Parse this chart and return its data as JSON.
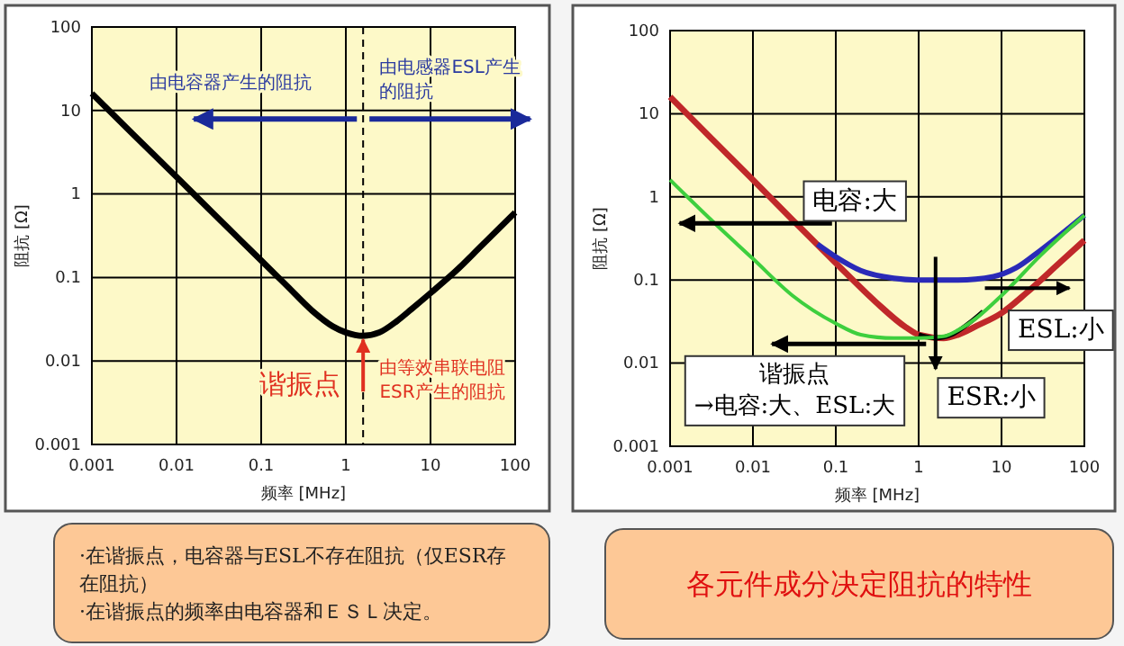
{
  "chart_data": [
    {
      "type": "line",
      "xlabel": "频率 [MHz]",
      "ylabel": "阻抗 [Ω]",
      "log": "xy",
      "grid": true,
      "xlim": [
        0.001,
        100
      ],
      "ylim": [
        0.001,
        100
      ],
      "xticks": [
        0.001,
        0.01,
        0.1,
        1,
        10,
        100
      ],
      "yticks": [
        0.001,
        0.01,
        0.1,
        1,
        10,
        100
      ],
      "ref_lines": [
        {
          "axis": "x",
          "value": 1.6,
          "line_style": "dashed",
          "color": "#000000"
        }
      ],
      "series": [
        {
          "color": "#000000",
          "x": [
            0.001,
            0.003,
            0.01,
            0.03,
            0.1,
            0.2,
            0.4,
            0.7,
            1,
            1.6,
            2.5,
            4,
            6,
            10,
            20,
            40,
            100
          ],
          "values": [
            16,
            5.3,
            1.6,
            0.53,
            0.16,
            0.08,
            0.04,
            0.026,
            0.022,
            0.02,
            0.022,
            0.03,
            0.042,
            0.065,
            0.12,
            0.24,
            0.6
          ]
        }
      ],
      "annotations": [
        "由电容器产生的阻抗",
        "由电感器ESL产生的阻抗",
        "谐振点",
        "由等效串联电阻ESR产生的阻抗",
        "·在谐振点，电容器与ESL不存在阻抗（仅ESR存在阻抗）",
        "·在谐振点的频率由电容器和ＥＳＬ决定。"
      ]
    },
    {
      "type": "line",
      "xlabel": "频率 [MHz]",
      "ylabel": "阻抗 [Ω]",
      "log": "xy",
      "grid": true,
      "xlim": [
        0.001,
        100
      ],
      "ylim": [
        0.001,
        100
      ],
      "xticks": [
        0.001,
        0.01,
        0.1,
        1,
        10,
        100
      ],
      "yticks": [
        0.001,
        0.01,
        0.1,
        1,
        10,
        100
      ],
      "series": [
        {
          "color": "#c0282a",
          "x": [
            0.001,
            0.003,
            0.01,
            0.03,
            0.1,
            0.3,
            0.7,
            1,
            2,
            3,
            5,
            10,
            20,
            50,
            100
          ],
          "values": [
            16,
            5.3,
            1.6,
            0.53,
            0.16,
            0.055,
            0.027,
            0.022,
            0.02,
            0.022,
            0.028,
            0.04,
            0.07,
            0.16,
            0.3
          ]
        },
        {
          "color": "#2a2ab8",
          "x": [
            0.06,
            0.1,
            0.2,
            0.5,
            1,
            3,
            8,
            15,
            30,
            100
          ],
          "values": [
            0.27,
            0.19,
            0.13,
            0.105,
            0.1,
            0.1,
            0.11,
            0.14,
            0.23,
            0.6
          ]
        },
        {
          "color": "#000000",
          "x": [
            1,
            1.6,
            2.5,
            4,
            6
          ],
          "values": [
            0.022,
            0.02,
            0.022,
            0.03,
            0.042
          ]
        },
        {
          "color": "#3ecf3e",
          "x": [
            0.001,
            0.003,
            0.01,
            0.03,
            0.1,
            0.2,
            0.5,
            1,
            2,
            3,
            5,
            10,
            30,
            100
          ],
          "values": [
            1.6,
            0.55,
            0.18,
            0.065,
            0.03,
            0.022,
            0.02,
            0.02,
            0.021,
            0.025,
            0.035,
            0.065,
            0.2,
            0.6
          ]
        }
      ],
      "annotations": [
        "电容:大",
        "ESL:小",
        "ESR:小",
        "谐振点\n→电容:大、ESL:大",
        "各元件成分决定阻抗的特性"
      ]
    }
  ]
}
